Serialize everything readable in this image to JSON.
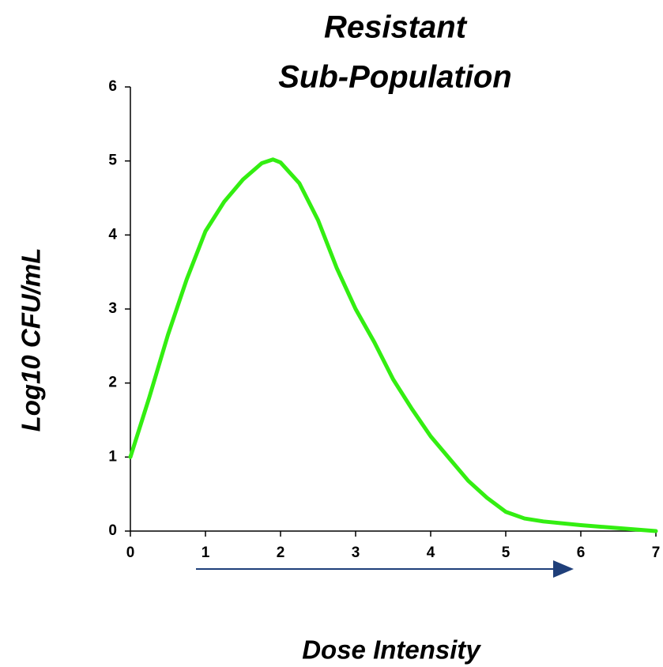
{
  "chart_data": {
    "type": "line",
    "title": [
      "Resistant",
      "Sub-Population"
    ],
    "xlabel": "Dose Intensity",
    "ylabel": "Log10 CFU/mL",
    "x": [
      0,
      0.25,
      0.5,
      0.75,
      1.0,
      1.25,
      1.5,
      1.75,
      1.9,
      2.0,
      2.25,
      2.5,
      2.75,
      3.0,
      3.25,
      3.5,
      3.75,
      4.0,
      4.25,
      4.5,
      4.75,
      5.0,
      5.25,
      5.5,
      6.0,
      6.5,
      7.0
    ],
    "series": [
      {
        "color": "#33ee11",
        "values": [
          1.0,
          1.8,
          2.65,
          3.4,
          4.05,
          4.45,
          4.75,
          4.97,
          5.02,
          4.98,
          4.7,
          4.2,
          3.55,
          3.0,
          2.55,
          2.05,
          1.65,
          1.28,
          0.98,
          0.68,
          0.45,
          0.26,
          0.17,
          0.13,
          0.08,
          0.04,
          0.0
        ]
      }
    ],
    "xlim": [
      0,
      7
    ],
    "xticks": [
      0,
      1,
      2,
      3,
      4,
      5,
      6,
      7
    ],
    "ylim": [
      0,
      6
    ],
    "yticks": [
      0,
      1,
      2,
      3,
      4,
      5,
      6
    ],
    "grid": false
  }
}
